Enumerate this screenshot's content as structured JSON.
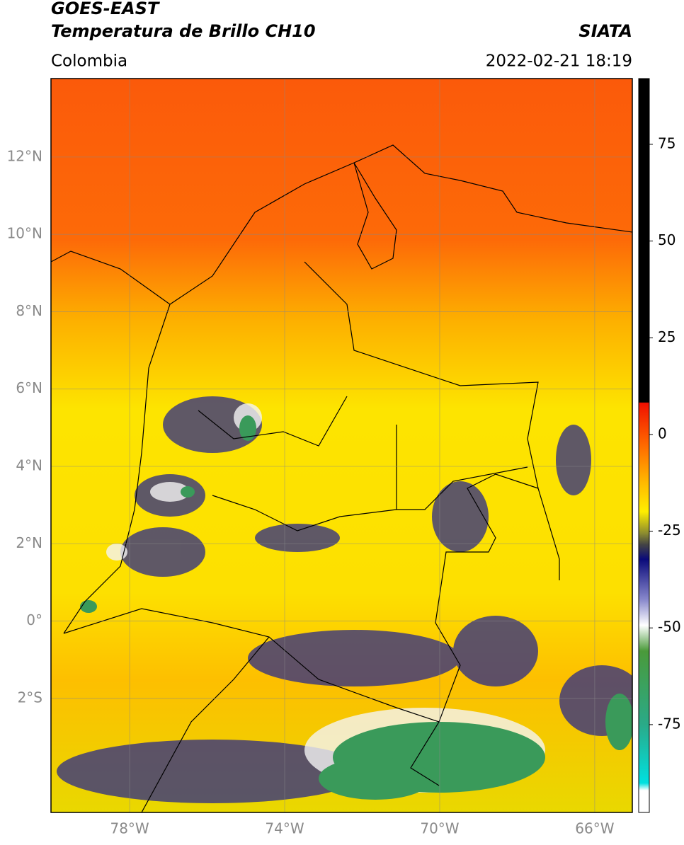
{
  "header": {
    "title": "GOES-EAST",
    "subtitle": "Temperatura de Brillo CH10",
    "region": "Colombia",
    "source": "SIATA",
    "datetime": "2022-02-21 18:19"
  },
  "map": {
    "lonlim": [
      -80.03,
      -65.03
    ],
    "latlim": [
      -4.95,
      14.03
    ],
    "lat_ticks": [
      {
        "value": 12,
        "label": "12°N"
      },
      {
        "value": 10,
        "label": "10°N"
      },
      {
        "value": 8,
        "label": "8°N"
      },
      {
        "value": 6,
        "label": "6°N"
      },
      {
        "value": 4,
        "label": "4°N"
      },
      {
        "value": 2,
        "label": "2°N"
      },
      {
        "value": 0,
        "label": "0°"
      },
      {
        "value": -2,
        "label": "2°S"
      }
    ],
    "lon_ticks": [
      {
        "value": -78,
        "label": "78°W"
      },
      {
        "value": -74,
        "label": "74°W"
      },
      {
        "value": -70,
        "label": "70°W"
      },
      {
        "value": -66,
        "label": "66°W"
      }
    ]
  },
  "colorbar": {
    "lim": [
      -97.7,
      92
    ],
    "ticks": [
      75,
      50,
      25,
      0,
      -25,
      -50,
      -75
    ]
  }
}
